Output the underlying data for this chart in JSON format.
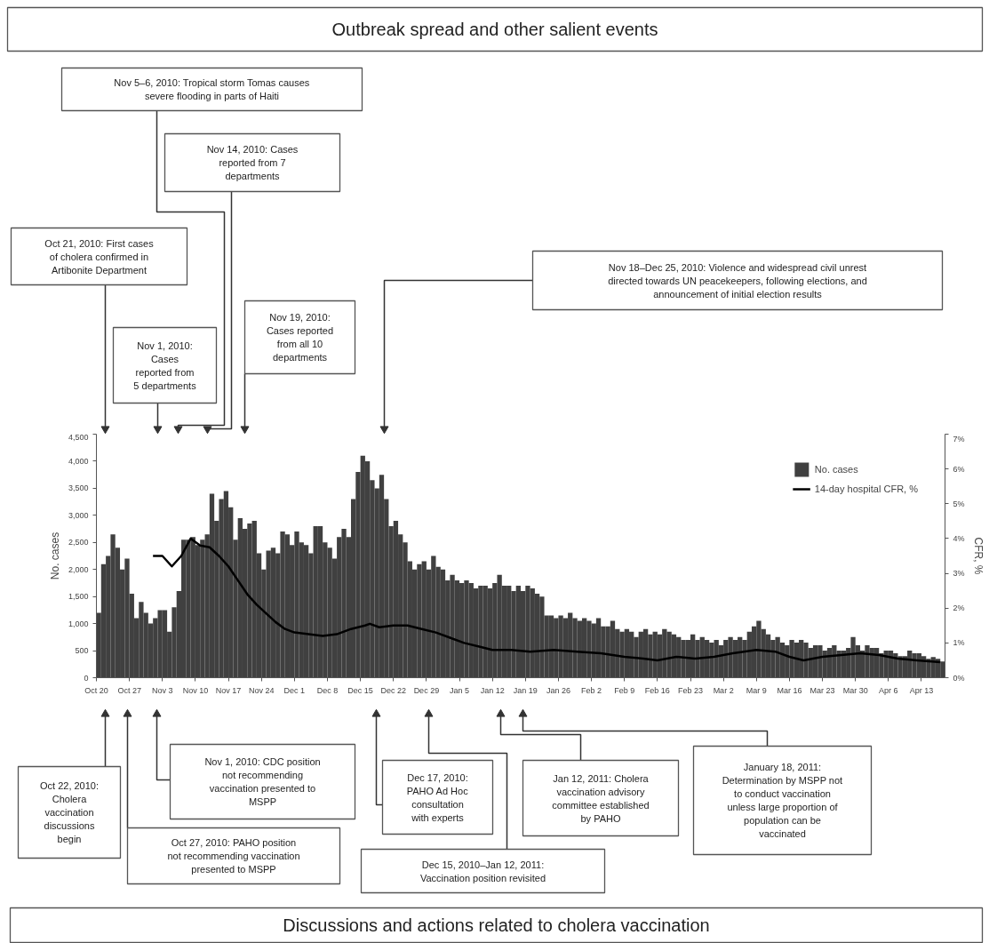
{
  "chart_data": {
    "type": "bar",
    "title": "Outbreak spread and other salient events",
    "ylabel": "No. cases",
    "y2label": "CFR, %",
    "x": [
      "2010-10-20",
      "2010-10-21",
      "2010-10-22",
      "2010-10-23",
      "2010-10-24",
      "2010-10-25",
      "2010-10-26",
      "2010-10-27",
      "2010-10-28",
      "2010-10-29",
      "2010-10-30",
      "2010-10-31",
      "2010-11-01",
      "2010-11-02",
      "2010-11-03",
      "2010-11-04",
      "2010-11-05",
      "2010-11-06",
      "2010-11-07",
      "2010-11-08",
      "2010-11-09",
      "2010-11-10",
      "2010-11-11",
      "2010-11-12",
      "2010-11-13",
      "2010-11-14",
      "2010-11-15",
      "2010-11-16",
      "2010-11-17",
      "2010-11-18",
      "2010-11-19",
      "2010-11-20",
      "2010-11-21",
      "2010-11-22",
      "2010-11-23",
      "2010-11-24",
      "2010-11-25",
      "2010-11-26",
      "2010-11-27",
      "2010-11-28",
      "2010-11-29",
      "2010-11-30",
      "2010-12-01",
      "2010-12-02",
      "2010-12-03",
      "2010-12-04",
      "2010-12-05",
      "2010-12-06",
      "2010-12-07",
      "2010-12-08",
      "2010-12-09",
      "2010-12-10",
      "2010-12-11",
      "2010-12-12",
      "2010-12-13",
      "2010-12-14",
      "2010-12-15",
      "2010-12-16",
      "2010-12-17",
      "2010-12-18",
      "2010-12-19",
      "2010-12-20",
      "2010-12-21",
      "2010-12-22",
      "2010-12-23",
      "2010-12-24",
      "2010-12-25",
      "2010-12-26",
      "2010-12-27",
      "2010-12-28",
      "2010-12-29",
      "2010-12-30",
      "2010-12-31",
      "2011-01-01",
      "2011-01-02",
      "2011-01-03",
      "2011-01-04",
      "2011-01-05",
      "2011-01-06",
      "2011-01-07",
      "2011-01-08",
      "2011-01-09",
      "2011-01-10",
      "2011-01-11",
      "2011-01-12",
      "2011-01-13",
      "2011-01-14",
      "2011-01-15",
      "2011-01-16",
      "2011-01-17",
      "2011-01-18",
      "2011-01-19",
      "2011-01-20",
      "2011-01-21",
      "2011-01-22",
      "2011-01-23",
      "2011-01-24",
      "2011-01-25",
      "2011-01-26",
      "2011-01-27",
      "2011-01-28",
      "2011-01-29",
      "2011-01-30",
      "2011-01-31",
      "2011-02-01",
      "2011-02-02",
      "2011-02-03",
      "2011-02-04",
      "2011-02-05",
      "2011-02-06",
      "2011-02-07",
      "2011-02-08",
      "2011-02-09",
      "2011-02-10",
      "2011-02-11",
      "2011-02-12",
      "2011-02-13",
      "2011-02-14",
      "2011-02-15",
      "2011-02-16",
      "2011-02-17",
      "2011-02-18",
      "2011-02-19",
      "2011-02-20",
      "2011-02-21",
      "2011-02-22",
      "2011-02-23",
      "2011-02-24",
      "2011-02-25",
      "2011-02-26",
      "2011-02-27",
      "2011-02-28",
      "2011-03-01",
      "2011-03-02",
      "2011-03-03",
      "2011-03-04",
      "2011-03-05",
      "2011-03-06",
      "2011-03-07",
      "2011-03-08",
      "2011-03-09",
      "2011-03-10",
      "2011-03-11",
      "2011-03-12",
      "2011-03-13",
      "2011-03-14",
      "2011-03-15",
      "2011-03-16",
      "2011-03-17",
      "2011-03-18",
      "2011-03-19",
      "2011-03-20",
      "2011-03-21",
      "2011-03-22",
      "2011-03-23",
      "2011-03-24",
      "2011-03-25",
      "2011-03-26",
      "2011-03-27",
      "2011-03-28",
      "2011-03-29",
      "2011-03-30",
      "2011-03-31",
      "2011-04-01",
      "2011-04-02",
      "2011-04-03",
      "2011-04-04",
      "2011-04-05",
      "2011-04-06",
      "2011-04-07",
      "2011-04-08",
      "2011-04-09",
      "2011-04-10",
      "2011-04-11",
      "2011-04-12",
      "2011-04-13",
      "2011-04-14",
      "2011-04-15",
      "2011-04-16",
      "2011-04-17"
    ],
    "series": [
      {
        "name": "No. cases",
        "color": "#404040",
        "values": [
          1200,
          2100,
          2250,
          2650,
          2400,
          2000,
          2200,
          1550,
          1100,
          1400,
          1200,
          1000,
          1100,
          1250,
          1250,
          850,
          1300,
          1600,
          2550,
          2550,
          2600,
          2450,
          2550,
          2650,
          3400,
          2900,
          3300,
          3450,
          3150,
          2550,
          2950,
          2750,
          2850,
          2900,
          2300,
          2000,
          2350,
          2400,
          2300,
          2700,
          2650,
          2450,
          2700,
          2500,
          2450,
          2300,
          2800,
          2800,
          2500,
          2400,
          2200,
          2600,
          2750,
          2600,
          3300,
          3800,
          4100,
          4000,
          3650,
          3500,
          3750,
          3300,
          2800,
          2900,
          2650,
          2500,
          2150,
          2000,
          2100,
          2150,
          2000,
          2250,
          2050,
          2000,
          1800,
          1900,
          1800,
          1750,
          1800,
          1750,
          1650,
          1700,
          1700,
          1650,
          1750,
          1900,
          1700,
          1700,
          1600,
          1700,
          1600,
          1700,
          1650,
          1550,
          1500,
          1150,
          1150,
          1100,
          1150,
          1100,
          1200,
          1100,
          1050,
          1100,
          1050,
          1000,
          1100,
          950,
          950,
          1050,
          900,
          850,
          900,
          850,
          750,
          850,
          900,
          800,
          850,
          800,
          900,
          850,
          800,
          750,
          700,
          700,
          800,
          700,
          750,
          700,
          650,
          700,
          600,
          700,
          750,
          700,
          750,
          700,
          850,
          950,
          1050,
          900,
          800,
          700,
          750,
          650,
          600,
          700,
          650,
          700,
          650,
          550,
          600,
          600,
          500,
          550,
          600,
          500,
          500,
          550,
          750,
          600,
          500,
          600,
          550,
          550,
          450,
          500,
          500,
          450,
          400,
          400,
          500,
          450,
          450,
          400,
          350,
          380,
          350,
          300
        ]
      },
      {
        "name": "14-day hospital CFR, %",
        "type": "line",
        "axis": "y2",
        "color": "#000000",
        "x": [
          "2010-11-01",
          "2010-11-03",
          "2010-11-05",
          "2010-11-07",
          "2010-11-09",
          "2010-11-11",
          "2010-11-13",
          "2010-11-15",
          "2010-11-17",
          "2010-11-19",
          "2010-11-21",
          "2010-11-23",
          "2010-11-25",
          "2010-11-27",
          "2010-11-29",
          "2010-12-01",
          "2010-12-04",
          "2010-12-07",
          "2010-12-10",
          "2010-12-13",
          "2010-12-16",
          "2010-12-17",
          "2010-12-19",
          "2010-12-22",
          "2010-12-25",
          "2010-12-28",
          "2010-12-31",
          "2011-01-03",
          "2011-01-06",
          "2011-01-09",
          "2011-01-12",
          "2011-01-16",
          "2011-01-20",
          "2011-01-25",
          "2011-01-30",
          "2011-02-04",
          "2011-02-09",
          "2011-02-13",
          "2011-02-16",
          "2011-02-20",
          "2011-02-24",
          "2011-02-28",
          "2011-03-04",
          "2011-03-09",
          "2011-03-13",
          "2011-03-16",
          "2011-03-19",
          "2011-03-23",
          "2011-03-27",
          "2011-03-31",
          "2011-04-04",
          "2011-04-08",
          "2011-04-12",
          "2011-04-17"
        ],
        "values": [
          3.5,
          3.5,
          3.2,
          3.5,
          4.0,
          3.8,
          3.75,
          3.5,
          3.2,
          2.8,
          2.4,
          2.1,
          1.85,
          1.6,
          1.4,
          1.3,
          1.25,
          1.2,
          1.25,
          1.4,
          1.5,
          1.55,
          1.45,
          1.5,
          1.5,
          1.4,
          1.3,
          1.15,
          1.0,
          0.9,
          0.8,
          0.8,
          0.75,
          0.8,
          0.75,
          0.7,
          0.6,
          0.55,
          0.5,
          0.6,
          0.55,
          0.6,
          0.7,
          0.8,
          0.75,
          0.6,
          0.5,
          0.6,
          0.65,
          0.7,
          0.65,
          0.55,
          0.5,
          0.45
        ]
      }
    ],
    "xlim": [
      "2010-10-20",
      "2011-04-18"
    ],
    "xticks": [
      {
        "value": "2010-10-20",
        "label": "Oct 20"
      },
      {
        "value": "2010-10-27",
        "label": "Oct 27"
      },
      {
        "value": "2010-11-03",
        "label": "Nov 3"
      },
      {
        "value": "2010-11-10",
        "label": "Nov 10"
      },
      {
        "value": "2010-11-17",
        "label": "Nov 17"
      },
      {
        "value": "2010-11-24",
        "label": "Nov 24"
      },
      {
        "value": "2010-12-01",
        "label": "Dec 1"
      },
      {
        "value": "2010-12-08",
        "label": "Dec 8"
      },
      {
        "value": "2010-12-15",
        "label": "Dec 15"
      },
      {
        "value": "2010-12-22",
        "label": "Dec 22"
      },
      {
        "value": "2010-12-29",
        "label": "Dec 29"
      },
      {
        "value": "2011-01-05",
        "label": "Jan 5"
      },
      {
        "value": "2011-01-12",
        "label": "Jan 12"
      },
      {
        "value": "2011-01-19",
        "label": "Jan 19"
      },
      {
        "value": "2011-01-26",
        "label": "Jan 26"
      },
      {
        "value": "2011-02-02",
        "label": "Feb 2"
      },
      {
        "value": "2011-02-09",
        "label": "Feb 9"
      },
      {
        "value": "2011-02-16",
        "label": "Feb 16"
      },
      {
        "value": "2011-02-23",
        "label": "Feb 23"
      },
      {
        "value": "2011-03-02",
        "label": "Mar 2"
      },
      {
        "value": "2011-03-09",
        "label": "Mar 9"
      },
      {
        "value": "2011-03-16",
        "label": "Mar 16"
      },
      {
        "value": "2011-03-23",
        "label": "Mar 23"
      },
      {
        "value": "2011-03-30",
        "label": "Mar 30"
      },
      {
        "value": "2011-04-06",
        "label": "Apr 6"
      },
      {
        "value": "2011-04-13",
        "label": "Apr 13"
      }
    ],
    "ylim": [
      0,
      4500
    ],
    "yticks": [
      0,
      500,
      {
        "value": 1000,
        "label": "1,000"
      },
      {
        "value": 1500,
        "label": "1,500"
      },
      {
        "value": 2000,
        "label": "2,000"
      },
      {
        "value": 2500,
        "label": "2,500"
      },
      {
        "value": 3000,
        "label": "3,000"
      },
      {
        "value": 3500,
        "label": "3,500"
      },
      {
        "value": 4000,
        "label": "4,000"
      },
      {
        "value": 4500,
        "label": "4,500"
      }
    ],
    "y2lim": [
      0,
      7
    ],
    "y2ticks": [
      {
        "value": 0,
        "label": "0%"
      },
      {
        "value": 1,
        "label": "1%"
      },
      {
        "value": 2,
        "label": "2%"
      },
      {
        "value": 3,
        "label": "3%"
      },
      {
        "value": 4,
        "label": "4%"
      },
      {
        "value": 5,
        "label": "5%"
      },
      {
        "value": 6,
        "label": "6%"
      },
      {
        "value": 7,
        "label": "7%"
      }
    ],
    "grid": false,
    "legend": "top right",
    "annotations": [
      "Oct 21, 2010: First cases of cholera confirmed in Artibonite Department",
      "Nov 1, 2010: Cases reported from 5 departments",
      "Nov 5–6, 2010: Tropical storm Tomas causes severe flooding in parts of Haiti",
      "Nov 14, 2010: Cases reported from 7 departments",
      "Nov 19, 2010: Cases reported from all 10 departments",
      "Nov 18–Dec 25, 2010: Violence and widespread civil unrest directed towards UN peacekeepers, following elections, and announcement of initial election results",
      "Oct 22, 2010: Cholera vaccination discussions begin",
      "Nov 1, 2010: CDC position not recommending vaccination presented to MSPP",
      "Oct 27, 2010: PAHO position not recommending vaccination presented to MSPP",
      "Dec 17, 2010: PAHO Ad Hoc consultation with experts",
      "Jan 12, 2011: Cholera vaccination advisory committee established by PAHO",
      "Dec 15, 2010–Jan 12, 2011: Vaccination position revisited",
      "January 18, 2011: Determination by MSPP not to conduct vaccination unless large proportion of population can be vaccinated",
      "Discussions and actions related to cholera vaccination"
    ]
  }
}
